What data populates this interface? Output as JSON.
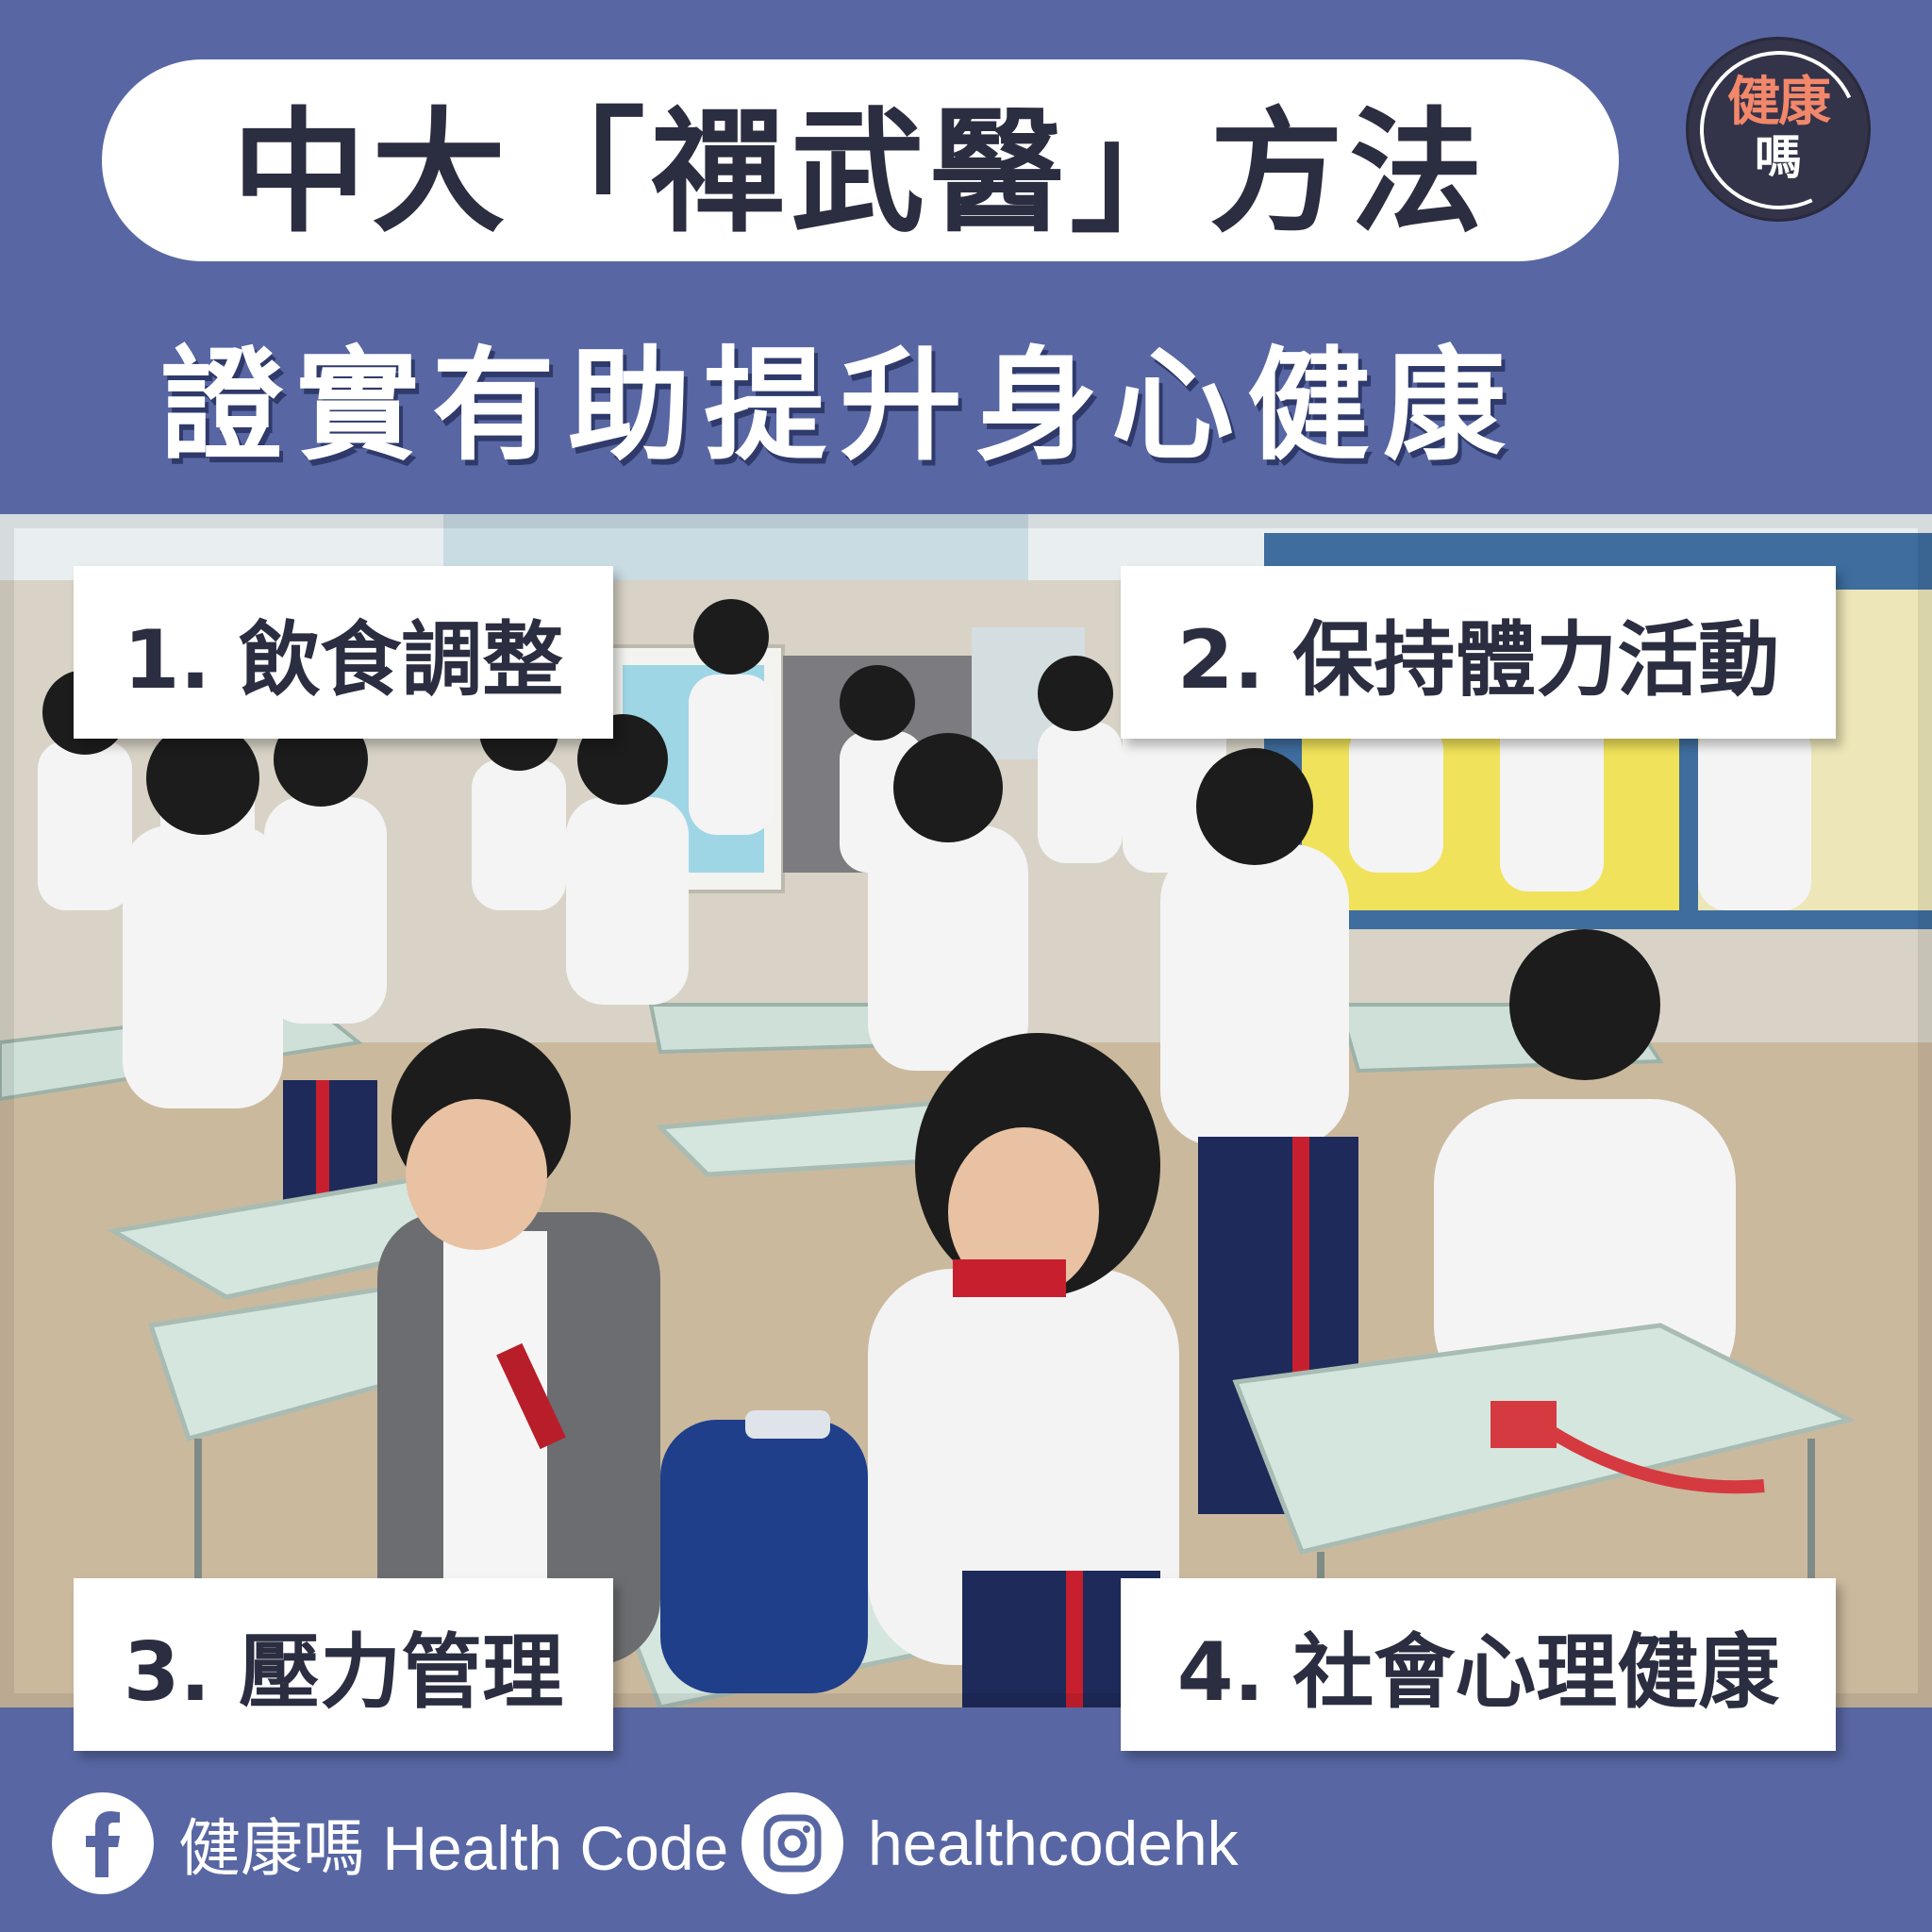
{
  "header": {
    "title": "中大「禪武醫」方法",
    "subtitle": "證實有助提升身心健康"
  },
  "logo": {
    "line1": "健康",
    "line2": "嗎",
    "colors": {
      "accent": "#f2876a",
      "badge": "#33334a"
    }
  },
  "photo": {
    "description_icon": "classroom-photo"
  },
  "methods": [
    {
      "label": "1. 飲食調整"
    },
    {
      "label": "2. 保持體力活動"
    },
    {
      "label": "3. 壓力管理"
    },
    {
      "label": "4. 社會心理健康"
    }
  ],
  "footer": {
    "facebook": {
      "icon": "facebook-icon",
      "text": "健康嗎 Health Code"
    },
    "instagram": {
      "icon": "instagram-icon",
      "text": "healthcodehk"
    }
  },
  "colors": {
    "background": "#5867a3",
    "text_dark": "#2b2d40",
    "text_light": "#ffffff"
  }
}
